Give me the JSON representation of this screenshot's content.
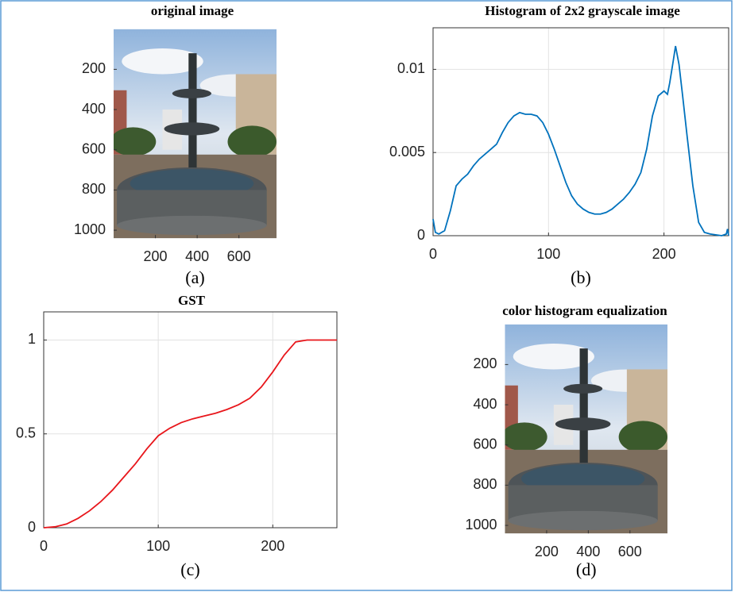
{
  "chart_data": [
    {
      "type": "image",
      "title": "original image",
      "caption": "(a)",
      "xlim": [
        0,
        780
      ],
      "ylim": [
        0,
        1040
      ],
      "xticks": [
        200,
        400,
        600
      ],
      "yticks": [
        200,
        400,
        600,
        800,
        1000
      ]
    },
    {
      "type": "line",
      "title": "Histogram of 2x2 grayscale image",
      "caption": "(b)",
      "color": "#0072bd",
      "grid": true,
      "x": [
        0,
        2,
        5,
        10,
        15,
        20,
        25,
        30,
        35,
        40,
        45,
        50,
        55,
        60,
        65,
        70,
        75,
        80,
        85,
        90,
        95,
        100,
        105,
        110,
        115,
        120,
        125,
        130,
        135,
        140,
        145,
        150,
        155,
        160,
        165,
        170,
        175,
        180,
        185,
        190,
        195,
        200,
        203,
        205,
        208,
        210,
        213,
        216,
        220,
        225,
        230,
        235,
        240,
        250,
        254,
        255,
        256
      ],
      "values": [
        0.001,
        0.0002,
        0.0001,
        0.0003,
        0.0015,
        0.003,
        0.0034,
        0.0037,
        0.0042,
        0.0046,
        0.0049,
        0.0052,
        0.0055,
        0.0062,
        0.0068,
        0.0072,
        0.0074,
        0.0073,
        0.0073,
        0.0072,
        0.0068,
        0.0061,
        0.0052,
        0.0042,
        0.0032,
        0.0024,
        0.0019,
        0.0016,
        0.0014,
        0.0013,
        0.0013,
        0.0014,
        0.0016,
        0.0019,
        0.0022,
        0.0026,
        0.0031,
        0.0038,
        0.0052,
        0.0072,
        0.0084,
        0.0087,
        0.0085,
        0.0092,
        0.0105,
        0.0114,
        0.0103,
        0.0085,
        0.006,
        0.003,
        0.0008,
        0.0002,
        0.0001,
        0,
        0.0001,
        0.0004,
        0
      ],
      "xlim": [
        0,
        256
      ],
      "ylim": [
        0,
        0.0125
      ],
      "xticks": [
        0,
        100,
        200
      ],
      "yticks": [
        0,
        0.005,
        0.01
      ]
    },
    {
      "type": "line",
      "title": "GST",
      "caption": "(c)",
      "color": "#e8161b",
      "grid": true,
      "x": [
        0,
        10,
        20,
        30,
        40,
        50,
        60,
        70,
        80,
        90,
        100,
        110,
        120,
        130,
        140,
        150,
        160,
        170,
        180,
        190,
        200,
        210,
        220,
        230,
        256
      ],
      "values": [
        0,
        0.005,
        0.02,
        0.05,
        0.09,
        0.14,
        0.2,
        0.27,
        0.34,
        0.42,
        0.49,
        0.53,
        0.56,
        0.58,
        0.595,
        0.61,
        0.63,
        0.655,
        0.69,
        0.75,
        0.83,
        0.92,
        0.99,
        1,
        1
      ],
      "xlim": [
        0,
        256
      ],
      "ylim": [
        0,
        1.15
      ],
      "xticks": [
        0,
        100,
        200
      ],
      "yticks": [
        0,
        0.5,
        1
      ]
    },
    {
      "type": "image",
      "title": "color histogram equalization",
      "caption": "(d)",
      "xlim": [
        0,
        780
      ],
      "ylim": [
        0,
        1040
      ],
      "xticks": [
        200,
        400,
        600
      ],
      "yticks": [
        200,
        400,
        600,
        800,
        1000
      ]
    }
  ]
}
